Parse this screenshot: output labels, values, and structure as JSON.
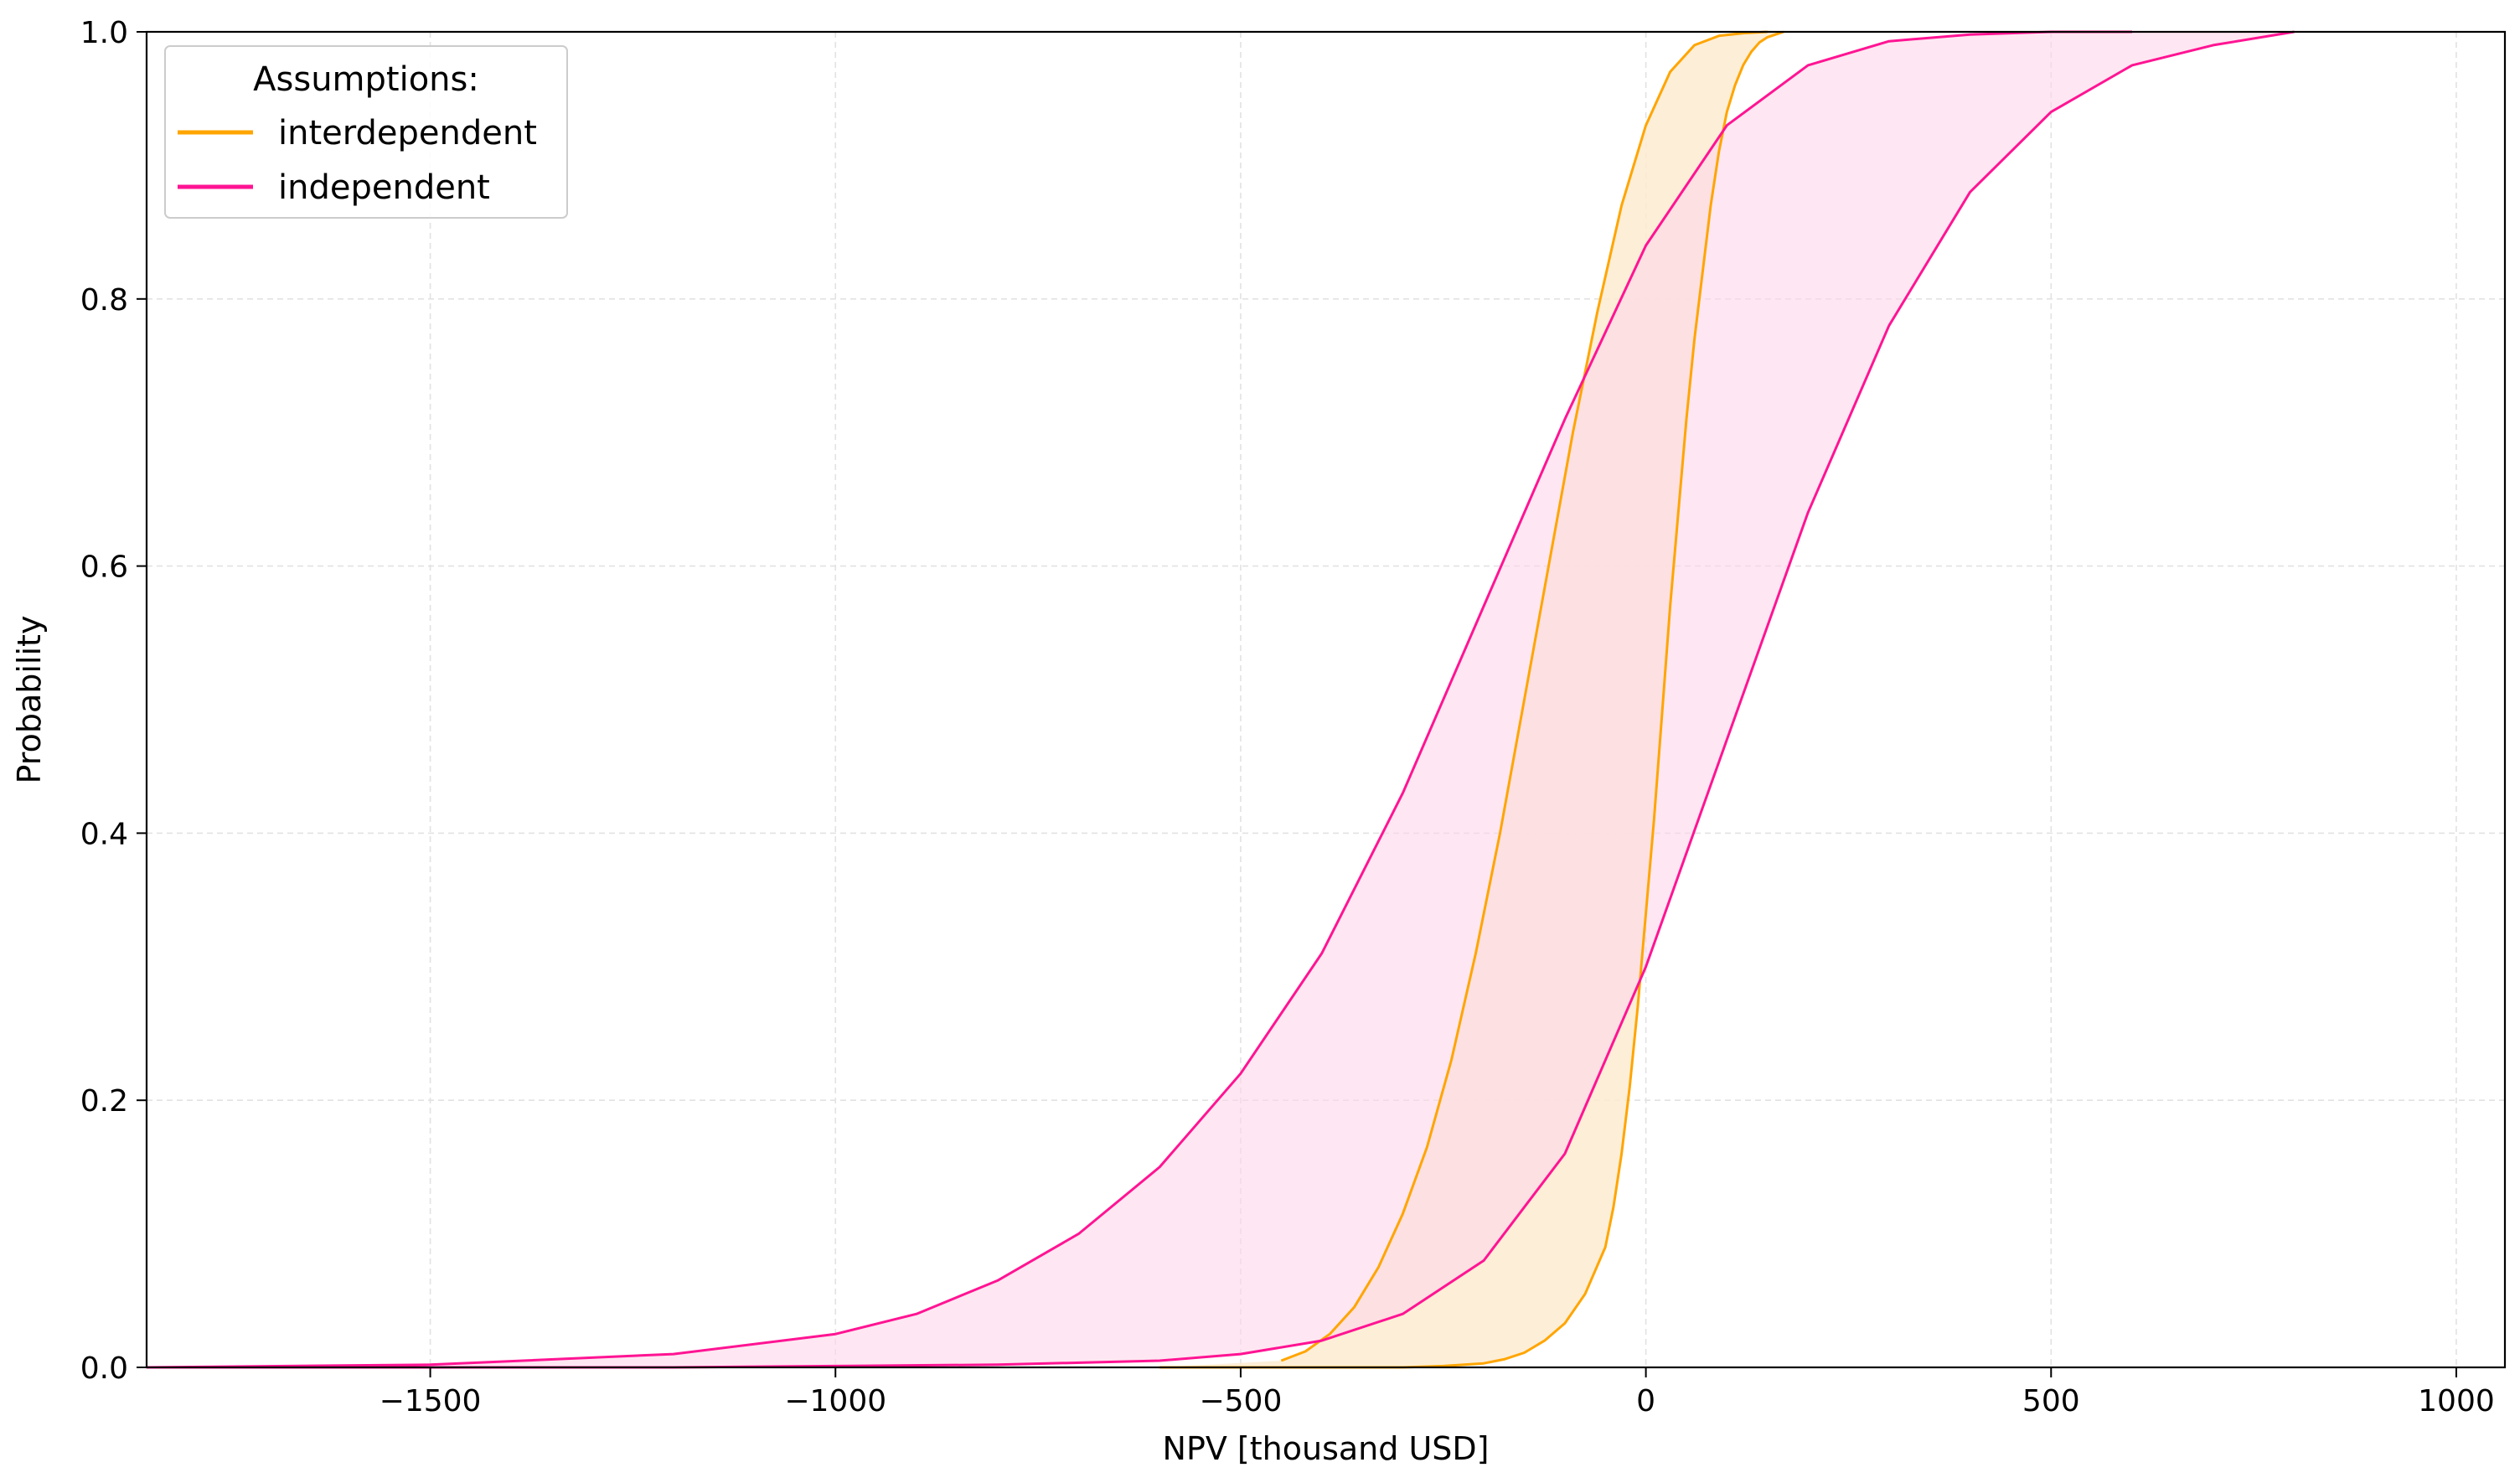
{
  "chart_data": {
    "type": "area",
    "xlabel": "NPV [thousand USD]",
    "ylabel": "Probability",
    "xlim": [
      -1850,
      1060
    ],
    "ylim": [
      0,
      1
    ],
    "xticks": [
      -1500,
      -1000,
      -500,
      0,
      500,
      1000
    ],
    "xtick_labels": [
      "−1500",
      "−1000",
      "−500",
      "0",
      "500",
      "1000"
    ],
    "yticks": [
      0.0,
      0.2,
      0.4,
      0.6,
      0.8,
      1.0
    ],
    "ytick_labels": [
      "0.0",
      "0.2",
      "0.4",
      "0.6",
      "0.8",
      "1.0"
    ],
    "grid": true,
    "legend": {
      "title": "Assumptions:",
      "placement": "top-left"
    },
    "series": [
      {
        "name": "interdependent",
        "color": "#ffa500",
        "fill": "#fdebd0",
        "lower": {
          "x": [
            -600,
            -500,
            -400,
            -300,
            -250,
            -200,
            -175,
            -150,
            -125,
            -100,
            -75,
            -50,
            -40,
            -30,
            -20,
            -10,
            0,
            10,
            20,
            30,
            40,
            50,
            60,
            70,
            80,
            90,
            100,
            110,
            120,
            130,
            140,
            150,
            160,
            170
          ],
          "y": [
            0.0,
            0.0,
            0.0,
            0.0,
            0.001,
            0.003,
            0.006,
            0.011,
            0.02,
            0.033,
            0.055,
            0.09,
            0.12,
            0.16,
            0.21,
            0.27,
            0.34,
            0.41,
            0.49,
            0.57,
            0.64,
            0.71,
            0.77,
            0.82,
            0.87,
            0.91,
            0.94,
            0.96,
            0.975,
            0.985,
            0.992,
            0.996,
            0.998,
            1.0
          ]
        },
        "upper": {
          "x": [
            -450,
            -420,
            -390,
            -360,
            -330,
            -300,
            -270,
            -240,
            -210,
            -180,
            -150,
            -120,
            -90,
            -60,
            -30,
            0,
            30,
            60,
            90,
            120,
            150
          ],
          "y": [
            0.005,
            0.012,
            0.025,
            0.045,
            0.075,
            0.115,
            0.165,
            0.23,
            0.31,
            0.4,
            0.5,
            0.6,
            0.7,
            0.79,
            0.87,
            0.93,
            0.97,
            0.99,
            0.997,
            0.999,
            1.0
          ]
        }
      },
      {
        "name": "independent",
        "color": "#ff1493",
        "fill": "#fdd7ea",
        "lower": {
          "x": [
            -1850,
            -1500,
            -1200,
            -1000,
            -800,
            -600,
            -500,
            -400,
            -300,
            -200,
            -100,
            0,
            100,
            200,
            300,
            400,
            500,
            600,
            700,
            800
          ],
          "y": [
            0.0,
            0.0,
            0.0,
            0.001,
            0.002,
            0.005,
            0.01,
            0.02,
            0.04,
            0.08,
            0.16,
            0.3,
            0.47,
            0.64,
            0.78,
            0.88,
            0.94,
            0.975,
            0.99,
            1.0
          ]
        },
        "upper": {
          "x": [
            -1850,
            -1500,
            -1200,
            -1000,
            -900,
            -800,
            -700,
            -600,
            -500,
            -400,
            -300,
            -200,
            -100,
            0,
            100,
            200,
            300,
            400,
            500,
            600
          ],
          "y": [
            0.0,
            0.002,
            0.01,
            0.025,
            0.04,
            0.065,
            0.1,
            0.15,
            0.22,
            0.31,
            0.43,
            0.57,
            0.71,
            0.84,
            0.93,
            0.975,
            0.993,
            0.998,
            1.0,
            1.0
          ]
        }
      }
    ]
  }
}
